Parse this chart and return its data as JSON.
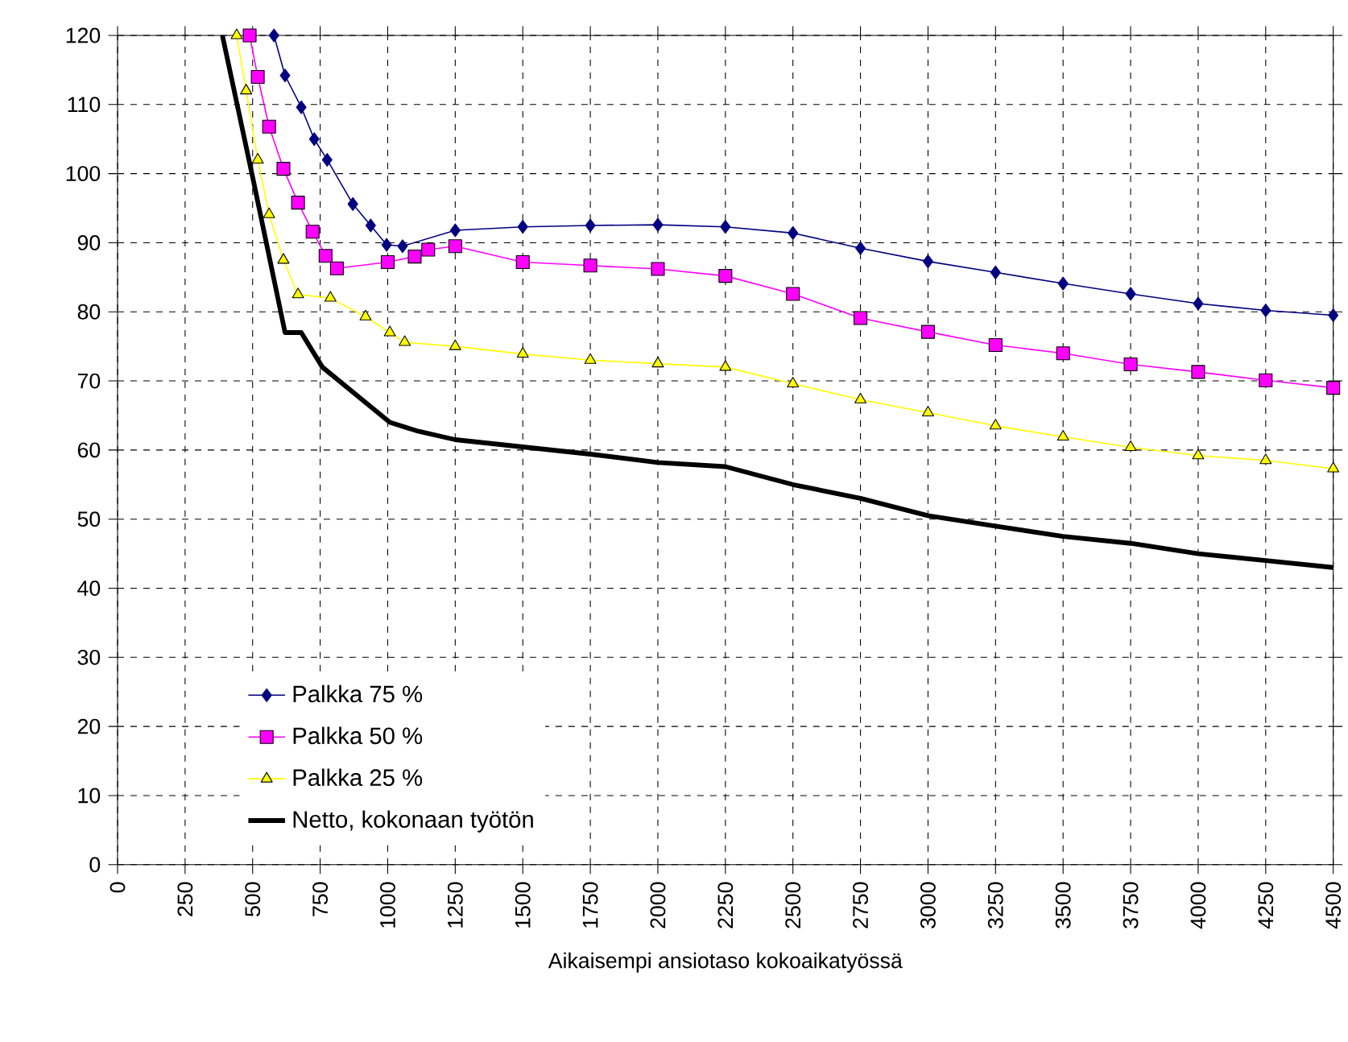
{
  "chart_data": {
    "type": "line",
    "xlabel": "Aikaisempi ansiotaso kokoaikatyössä",
    "xlim": [
      0,
      4500
    ],
    "xticks": [
      0,
      250,
      500,
      750,
      1000,
      1250,
      1500,
      1750,
      2000,
      2250,
      2500,
      2750,
      3000,
      3250,
      3500,
      3750,
      4000,
      4250,
      4500
    ],
    "ylim": [
      0,
      120
    ],
    "yticks": [
      0,
      10,
      20,
      30,
      40,
      50,
      60,
      70,
      80,
      90,
      100,
      110,
      120
    ],
    "grid": true,
    "legend": "bottom left",
    "line_style": "solid",
    "series": [
      {
        "name": "Palkka 75 %",
        "color": "#000080",
        "marker": "diamond",
        "x": [
          579,
          620,
          680,
          728,
          776,
          871,
          937,
          996,
          1055,
          1250,
          1500,
          1750,
          2000,
          2250,
          2500,
          2750,
          3000,
          3250,
          3500,
          3750,
          4000,
          4250,
          4500
        ],
        "values": [
          120,
          114.2,
          109.6,
          105,
          102,
          95.6,
          92.5,
          89.7,
          89.5,
          91.8,
          92.3,
          92.5,
          92.6,
          92.3,
          91.4,
          89.2,
          87.3,
          85.7,
          84.1,
          82.6,
          81.2,
          80.2,
          79.5
        ]
      },
      {
        "name": "Palkka 50 %",
        "color": "#ff00ff",
        "marker": "square",
        "x": [
          489,
          519,
          561,
          614,
          668,
          722,
          770,
          812,
          1000,
          1100,
          1150,
          1250,
          1500,
          1750,
          2000,
          2250,
          2500,
          2750,
          3000,
          3250,
          3500,
          3750,
          4000,
          4250,
          4500
        ],
        "values": [
          120,
          114,
          106.8,
          100.7,
          95.8,
          91.6,
          88.1,
          86.3,
          87.2,
          88,
          89,
          89.5,
          87.2,
          86.7,
          86.2,
          85.2,
          82.6,
          79.1,
          77.1,
          75.2,
          74,
          72.4,
          71.3,
          70.1,
          69
        ]
      },
      {
        "name": "Palkka 25 %",
        "color": "#ffff00",
        "marker": "triangle",
        "x": [
          441,
          476,
          519,
          561,
          614,
          668,
          788,
          918,
          1008,
          1063,
          1250,
          1500,
          1750,
          2000,
          2250,
          2500,
          2750,
          3000,
          3250,
          3500,
          3750,
          4000,
          4250,
          4500
        ],
        "values": [
          120,
          112,
          102,
          94.1,
          87.5,
          82.5,
          82,
          79.3,
          77,
          75.6,
          75,
          73.9,
          73,
          72.5,
          72,
          69.6,
          67.3,
          65.4,
          63.5,
          61.9,
          60.4,
          59.2,
          58.5,
          57.3
        ]
      },
      {
        "name": "Netto, kokonaan työtön",
        "color": "#000000",
        "marker": "none",
        "x": [
          388,
          500,
          620,
          680,
          758,
          1008,
          1115,
          1250,
          1750,
          2000,
          2250,
          2500,
          2750,
          3000,
          3250,
          3500,
          3750,
          4000,
          4250,
          4500
        ],
        "values": [
          120,
          99.5,
          77,
          77,
          72,
          64,
          62.7,
          61.5,
          59.4,
          58.2,
          57.6,
          55,
          53,
          50.5,
          49,
          47.5,
          46.5,
          45,
          44,
          43
        ]
      }
    ]
  }
}
